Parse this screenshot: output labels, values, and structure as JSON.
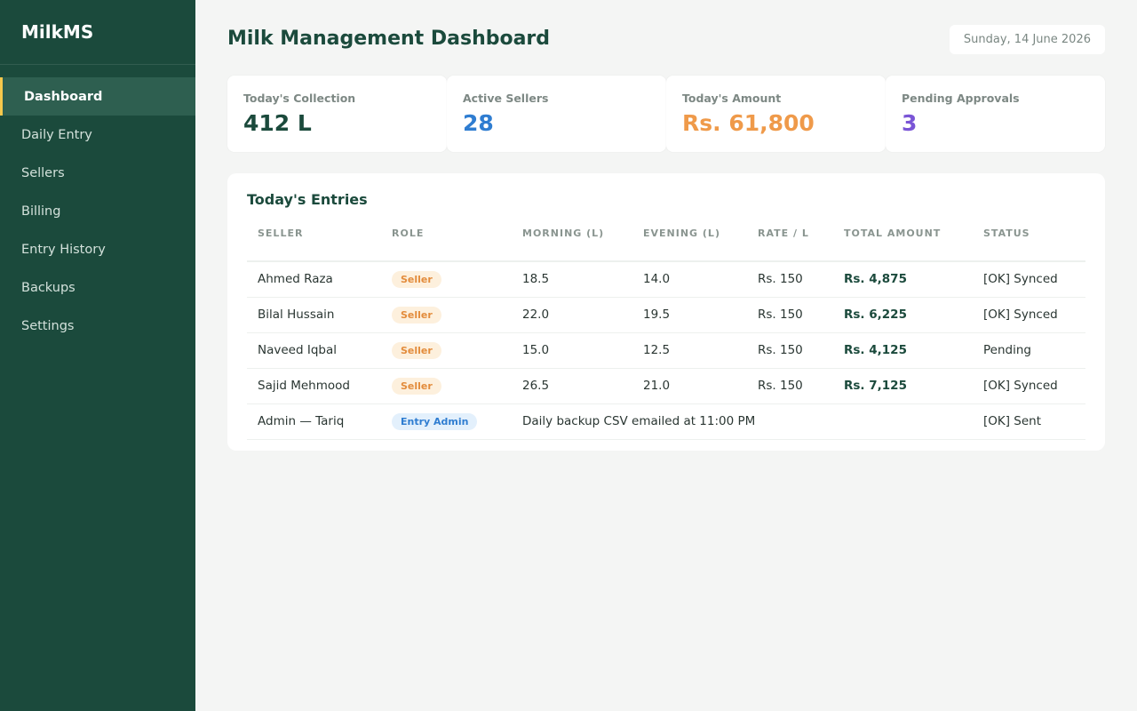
{
  "sidebar": {
    "brand": "MilkMS",
    "items": [
      {
        "label": "Dashboard",
        "active": true
      },
      {
        "label": "Daily Entry"
      },
      {
        "label": "Sellers"
      },
      {
        "label": "Billing"
      },
      {
        "label": "Entry History"
      },
      {
        "label": "Backups"
      },
      {
        "label": "Settings"
      }
    ]
  },
  "header": {
    "title": "Milk Management Dashboard",
    "date": "Sunday, 14 June 2026"
  },
  "stats": [
    {
      "label": "Today's Collection",
      "value": "412 L",
      "color": "#1b4a3c"
    },
    {
      "label": "Active Sellers",
      "value": "28",
      "color": "#2f7dd1"
    },
    {
      "label": "Today's Amount",
      "value": "Rs. 61,800",
      "color": "#ef9a4a"
    },
    {
      "label": "Pending Approvals",
      "value": "3",
      "color": "#7a55d6"
    }
  ],
  "entries": {
    "title": "Today's Entries",
    "columns": [
      "SELLER",
      "ROLE",
      "MORNING (L)",
      "EVENING (L)",
      "RATE / L",
      "TOTAL AMOUNT",
      "STATUS"
    ],
    "rows": [
      {
        "seller": "Ahmed Raza",
        "role": "Seller",
        "morning": "18.5",
        "evening": "14.0",
        "rate": "Rs. 150",
        "total": "Rs. 4,875",
        "status": "[OK] Synced"
      },
      {
        "seller": "Bilal Hussain",
        "role": "Seller",
        "morning": "22.0",
        "evening": "19.5",
        "rate": "Rs. 150",
        "total": "Rs. 6,225",
        "status": "[OK] Synced"
      },
      {
        "seller": "Naveed Iqbal",
        "role": "Seller",
        "morning": "15.0",
        "evening": "12.5",
        "rate": "Rs. 150",
        "total": "Rs. 4,125",
        "status": "Pending"
      },
      {
        "seller": "Sajid Mehmood",
        "role": "Seller",
        "morning": "26.5",
        "evening": "21.0",
        "rate": "Rs. 150",
        "total": "Rs. 7,125",
        "status": "[OK] Synced"
      }
    ],
    "admin_row": {
      "seller": "Admin — Tariq",
      "role": "Entry Admin",
      "note": "Daily backup CSV emailed at 11:00 PM",
      "status": "[OK] Sent"
    }
  }
}
